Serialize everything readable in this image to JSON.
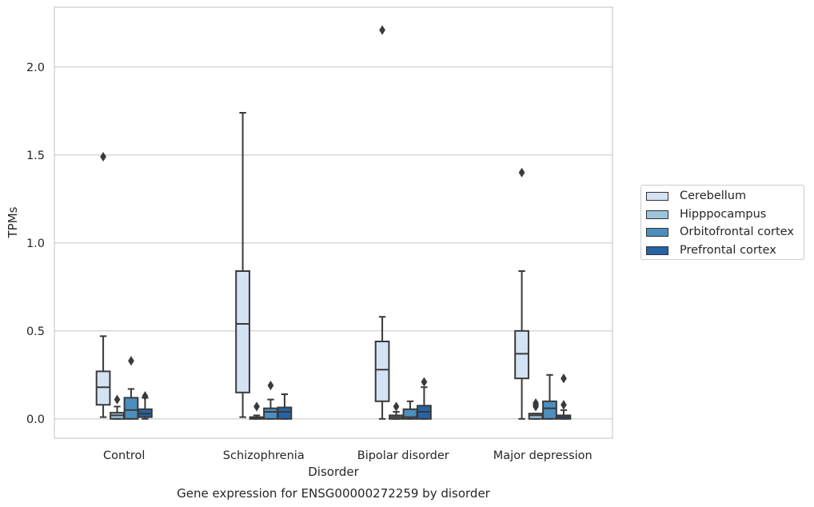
{
  "chart_data": {
    "type": "boxplot",
    "title": "",
    "caption": "Gene expression for ENSG00000272259 by disorder",
    "xlabel": "Disorder",
    "ylabel": "TPMs",
    "ylim": [
      -0.11,
      2.34
    ],
    "yticks": [
      0.0,
      0.5,
      1.0,
      1.5,
      2.0
    ],
    "ytick_labels": [
      "0.0",
      "0.5",
      "1.0",
      "1.5",
      "2.0"
    ],
    "grid": "horizontal",
    "legend_position": "right",
    "categories": [
      "Control",
      "Schizophrenia",
      "Bipolar disorder",
      "Major depression"
    ],
    "series": [
      {
        "name": "Cerebellum",
        "color": "#d4e3f3",
        "boxes": [
          {
            "whisker_low": 0.01,
            "q1": 0.08,
            "median": 0.18,
            "q3": 0.27,
            "whisker_high": 0.47,
            "outliers": [
              1.49
            ]
          },
          {
            "whisker_low": 0.01,
            "q1": 0.15,
            "median": 0.54,
            "q3": 0.84,
            "whisker_high": 1.74,
            "outliers": []
          },
          {
            "whisker_low": 0.0,
            "q1": 0.1,
            "median": 0.28,
            "q3": 0.44,
            "whisker_high": 0.58,
            "outliers": [
              2.21
            ]
          },
          {
            "whisker_low": 0.0,
            "q1": 0.23,
            "median": 0.37,
            "q3": 0.5,
            "whisker_high": 0.84,
            "outliers": [
              1.4
            ]
          }
        ]
      },
      {
        "name": "Hipppocampus",
        "color": "#9cc4dc",
        "boxes": [
          {
            "whisker_low": 0.0,
            "q1": 0.0,
            "median": 0.02,
            "q3": 0.035,
            "whisker_high": 0.07,
            "outliers": [
              0.11
            ]
          },
          {
            "whisker_low": 0.0,
            "q1": 0.0,
            "median": 0.005,
            "q3": 0.01,
            "whisker_high": 0.02,
            "outliers": [
              0.07
            ]
          },
          {
            "whisker_low": 0.0,
            "q1": 0.0,
            "median": 0.01,
            "q3": 0.02,
            "whisker_high": 0.04,
            "outliers": [
              0.07
            ]
          },
          {
            "whisker_low": 0.0,
            "q1": 0.0,
            "median": 0.02,
            "q3": 0.03,
            "whisker_high": 0.03,
            "outliers": [
              0.07,
              0.08,
              0.09
            ]
          }
        ]
      },
      {
        "name": "Orbitofrontal cortex",
        "color": "#4c8fbf",
        "boxes": [
          {
            "whisker_low": 0.0,
            "q1": 0.0,
            "median": 0.05,
            "q3": 0.12,
            "whisker_high": 0.17,
            "outliers": [
              0.33
            ]
          },
          {
            "whisker_low": 0.0,
            "q1": 0.0,
            "median": 0.04,
            "q3": 0.06,
            "whisker_high": 0.11,
            "outliers": [
              0.19
            ]
          },
          {
            "whisker_low": 0.0,
            "q1": 0.0,
            "median": 0.01,
            "q3": 0.055,
            "whisker_high": 0.1,
            "outliers": []
          },
          {
            "whisker_low": 0.0,
            "q1": 0.0,
            "median": 0.06,
            "q3": 0.1,
            "whisker_high": 0.25,
            "outliers": []
          }
        ]
      },
      {
        "name": "Prefrontal cortex",
        "color": "#2563a5",
        "boxes": [
          {
            "whisker_low": 0.0,
            "q1": 0.01,
            "median": 0.03,
            "q3": 0.055,
            "whisker_high": 0.12,
            "outliers": [
              0.13
            ]
          },
          {
            "whisker_low": 0.0,
            "q1": 0.0,
            "median": 0.04,
            "q3": 0.065,
            "whisker_high": 0.14,
            "outliers": []
          },
          {
            "whisker_low": 0.0,
            "q1": 0.0,
            "median": 0.04,
            "q3": 0.075,
            "whisker_high": 0.18,
            "outliers": [
              0.21
            ]
          },
          {
            "whisker_low": 0.0,
            "q1": 0.0,
            "median": 0.01,
            "q3": 0.02,
            "whisker_high": 0.05,
            "outliers": [
              0.08,
              0.23
            ]
          }
        ]
      }
    ]
  }
}
